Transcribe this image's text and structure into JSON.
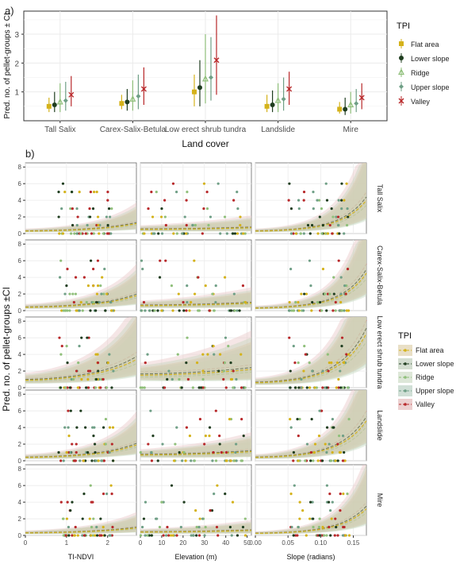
{
  "colors": {
    "flat": "#d4b21a",
    "lower": "#1f3d1f",
    "ridge": "#8fbf7a",
    "upper": "#6f9f86",
    "valley": "#b8282a",
    "panel_bg": "#ffffff",
    "grid": "#ebebeb",
    "axis_text": "#4d4d4d"
  },
  "panel_a": {
    "tag": "a)",
    "ylabel": "Pred. no. of pellet-groups ± CI",
    "xlabel": "Land cover",
    "yticks": [
      1,
      2,
      3
    ],
    "ylim": [
      0,
      3.8
    ],
    "categories": [
      "Tall Salix",
      "Carex-Salix-Betula",
      "Low erect shrub tundra",
      "Landslide",
      "Mire"
    ],
    "legend_title": "TPI",
    "legend": [
      {
        "name": "Flat area",
        "key": "flat",
        "marker": "square"
      },
      {
        "name": "Lower slope",
        "key": "lower",
        "marker": "circle"
      },
      {
        "name": "Ridge",
        "key": "ridge",
        "marker": "triangle"
      },
      {
        "name": "Upper slope",
        "key": "upper",
        "marker": "diamond"
      },
      {
        "name": "Valley",
        "key": "valley",
        "marker": "cross"
      }
    ]
  },
  "panel_b": {
    "tag": "b)",
    "ylabel": "Pred. no. of pellet-groups ±CI",
    "yticks": [
      0,
      2,
      4,
      6,
      8
    ],
    "columns": [
      {
        "xlabel": "TI-NDVI",
        "ticks": [
          "0",
          "1",
          "2"
        ],
        "tick_values": [
          0,
          1,
          2
        ],
        "range": [
          0,
          2.7
        ]
      },
      {
        "xlabel": "Elevation (m)",
        "ticks": [
          "0",
          "10",
          "20",
          "30",
          "40",
          "50"
        ],
        "tick_values": [
          0,
          10,
          20,
          30,
          40,
          50
        ],
        "range": [
          0,
          52
        ]
      },
      {
        "xlabel": "Slope (radians)",
        "ticks": [
          "0.00",
          "0.05",
          "0.10",
          "0.15"
        ],
        "tick_values": [
          0,
          0.05,
          0.1,
          0.15
        ],
        "range": [
          0,
          0.17
        ]
      }
    ],
    "rows": [
      "Tall Salix",
      "Carex-Salix-Betula",
      "Low erect shrub tundra",
      "Landslide",
      "Mire"
    ],
    "legend_title": "TPI",
    "legend": [
      {
        "name": "Flat area",
        "key": "flat"
      },
      {
        "name": "Lower slope",
        "key": "lower"
      },
      {
        "name": "Ridge",
        "key": "ridge"
      },
      {
        "name": "Upper slope",
        "key": "upper"
      },
      {
        "name": "Valley",
        "key": "valley"
      }
    ]
  },
  "chart_data": [
    {
      "type": "scatter",
      "title": "",
      "xlabel": "Land cover",
      "ylabel": "Pred. no. of pellet-groups ± CI",
      "categories": [
        "Tall Salix",
        "Carex-Salix-Betula",
        "Low erect shrub tundra",
        "Landslide",
        "Mire"
      ],
      "ylim": [
        0,
        3.8
      ],
      "series": [
        {
          "name": "Flat area",
          "values": [
            0.5,
            0.6,
            1.0,
            0.5,
            0.4
          ],
          "lower": [
            0.3,
            0.4,
            0.5,
            0.3,
            0.25
          ],
          "upper": [
            0.8,
            0.9,
            1.6,
            0.9,
            0.65
          ]
        },
        {
          "name": "Lower slope",
          "values": [
            0.55,
            0.65,
            1.15,
            0.55,
            0.4
          ],
          "lower": [
            0.3,
            0.35,
            0.5,
            0.3,
            0.2
          ],
          "upper": [
            1.0,
            1.1,
            2.1,
            1.05,
            0.8
          ]
        },
        {
          "name": "Ridge",
          "values": [
            0.65,
            0.75,
            1.45,
            0.7,
            0.55
          ],
          "lower": [
            0.3,
            0.35,
            0.6,
            0.3,
            0.25
          ],
          "upper": [
            1.3,
            1.4,
            3.0,
            1.3,
            1.0
          ]
        },
        {
          "name": "Upper slope",
          "values": [
            0.7,
            0.85,
            1.5,
            0.75,
            0.6
          ],
          "lower": [
            0.35,
            0.4,
            0.7,
            0.35,
            0.3
          ],
          "upper": [
            1.35,
            1.6,
            2.9,
            1.5,
            1.1
          ]
        },
        {
          "name": "Valley",
          "values": [
            0.9,
            1.1,
            2.1,
            1.1,
            0.8
          ],
          "lower": [
            0.5,
            0.55,
            0.9,
            0.55,
            0.4
          ],
          "upper": [
            1.55,
            1.85,
            3.65,
            1.7,
            1.3
          ]
        }
      ]
    },
    {
      "type": "line",
      "title": "",
      "ylabel": "Pred. no. of pellet-groups ±CI",
      "ylim": [
        0,
        8
      ],
      "facet_rows": [
        "Tall Salix",
        "Carex-Salix-Betula",
        "Low erect shrub tundra",
        "Landslide",
        "Mire"
      ],
      "facet_cols": [
        "TI-NDVI",
        "Elevation (m)",
        "Slope (radians)"
      ],
      "series": [
        "Flat area",
        "Lower slope",
        "Ridge",
        "Upper slope",
        "Valley"
      ],
      "curves": {
        "TI-NDVI": {
          "Tall Salix": [
            0.3,
            1.2
          ],
          "Carex-Salix-Betula": [
            0.4,
            1.8
          ],
          "Low erect shrub tundra": [
            0.9,
            3.4
          ],
          "Landslide": [
            0.4,
            1.9
          ],
          "Mire": [
            0.3,
            0.9
          ]
        },
        "Elevation (m)": {
          "Tall Salix": [
            0.5,
            0.7
          ],
          "Carex-Salix-Betula": [
            0.6,
            0.9
          ],
          "Low erect shrub tundra": [
            1.5,
            2.2
          ],
          "Landslide": [
            0.7,
            1.1
          ],
          "Mire": [
            0.4,
            0.6
          ]
        },
        "Slope (radians)": {
          "Tall Salix": [
            0.3,
            4.0
          ],
          "Carex-Salix-Betula": [
            0.3,
            4.5
          ],
          "Low erect shrub tundra": [
            0.6,
            6.5
          ],
          "Landslide": [
            0.4,
            4.8
          ],
          "Mire": [
            0.25,
            3.2
          ]
        }
      }
    }
  ]
}
